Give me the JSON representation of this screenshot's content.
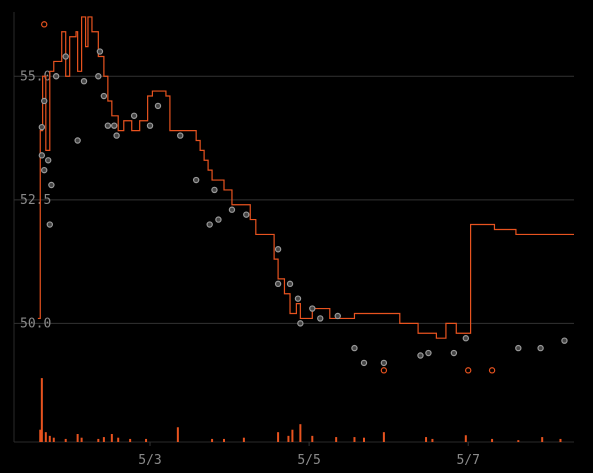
{
  "chart_data": {
    "type": "line",
    "xlim": [
      1.29,
      8.33
    ],
    "xticks": [
      {
        "value": 3,
        "label": "5/3"
      },
      {
        "value": 5,
        "label": "5/5"
      },
      {
        "value": 7,
        "label": "5/7"
      }
    ],
    "ylim": [
      47.6,
      56.3
    ],
    "yticks": [
      {
        "value": 55,
        "label": "55.0"
      },
      52.5,
      {
        "value": 50,
        "label": "50.0"
      }
    ],
    "y2lim": [
      0,
      700
    ],
    "grid": true,
    "series": [
      {
        "type": "step",
        "color": "#e8531f",
        "x": [
          1.59,
          1.62,
          1.65,
          1.69,
          1.74,
          1.79,
          1.89,
          1.94,
          1.99,
          2.07,
          2.09,
          2.14,
          2.19,
          2.22,
          2.27,
          2.35,
          2.42,
          2.47,
          2.52,
          2.6,
          2.67,
          2.77,
          2.87,
          2.97,
          3.03,
          3.2,
          3.25,
          3.38,
          3.58,
          3.63,
          3.68,
          3.73,
          3.78,
          3.93,
          4.03,
          4.26,
          4.33,
          4.56,
          4.61,
          4.69,
          4.76,
          4.84,
          4.89,
          5.04,
          5.26,
          5.57,
          6.14,
          6.37,
          6.6,
          6.72,
          6.85,
          7.03,
          7.33,
          7.6,
          8.33
        ],
        "values": [
          50.1,
          53.9,
          55.0,
          53.5,
          55.1,
          55.3,
          55.9,
          55.0,
          55.8,
          55.9,
          55.1,
          56.2,
          55.6,
          56.2,
          55.9,
          55.4,
          55.0,
          54.5,
          54.2,
          53.9,
          54.1,
          53.9,
          54.1,
          54.6,
          54.7,
          54.6,
          53.9,
          53.9,
          53.7,
          53.5,
          53.3,
          53.1,
          52.9,
          52.7,
          52.4,
          52.1,
          51.8,
          51.3,
          50.9,
          50.6,
          50.2,
          50.4,
          50.1,
          50.3,
          50.1,
          50.2,
          50.0,
          49.8,
          49.7,
          50.0,
          49.8,
          52.0,
          51.9,
          51.8,
          51.8
        ]
      },
      {
        "type": "scatter",
        "color": "#9a9a9a",
        "x": [
          1.64,
          1.67,
          1.64,
          1.67,
          1.72,
          1.74,
          1.76,
          1.82,
          1.94,
          2.09,
          2.17,
          2.35,
          2.37,
          2.42,
          2.47,
          2.55,
          2.58,
          2.8,
          3.0,
          3.1,
          3.38,
          3.58,
          3.81,
          3.75,
          3.86,
          4.03,
          4.21,
          4.61,
          4.61,
          4.76,
          4.86,
          4.89,
          5.04,
          5.14,
          5.36,
          5.57,
          5.69,
          5.94,
          6.4,
          6.5,
          6.82,
          6.97,
          7.63,
          7.91,
          8.21
        ],
        "values": [
          53.97,
          54.5,
          53.4,
          53.1,
          53.3,
          52.0,
          52.8,
          55.0,
          55.4,
          53.7,
          54.9,
          55.0,
          55.5,
          54.6,
          54.0,
          54.0,
          53.8,
          54.2,
          54.0,
          54.4,
          53.8,
          52.9,
          52.7,
          52.0,
          52.1,
          52.3,
          52.2,
          51.5,
          50.8,
          50.8,
          50.5,
          50.0,
          50.3,
          50.1,
          50.15,
          49.5,
          49.2,
          49.2,
          49.35,
          49.4,
          49.4,
          49.7,
          49.5,
          49.5,
          49.65
        ]
      },
      {
        "type": "scatter",
        "color": "#e8531f",
        "x": [
          1.67,
          5.94,
          7.0,
          7.3
        ],
        "values": [
          56.05,
          49.05,
          49.05,
          49.05
        ]
      },
      {
        "type": "bar",
        "axis": "y2",
        "color": "#e8531f",
        "x": [
          1.62,
          1.64,
          1.69,
          1.74,
          1.79,
          1.94,
          2.09,
          2.14,
          2.35,
          2.42,
          2.52,
          2.6,
          2.75,
          2.95,
          3.35,
          3.78,
          3.93,
          4.18,
          4.61,
          4.74,
          4.79,
          4.89,
          5.04,
          5.34,
          5.57,
          5.69,
          5.94,
          6.47,
          6.55,
          6.97,
          7.3,
          7.63,
          7.93,
          8.16
        ],
        "values": [
          20,
          104,
          16,
          10,
          7,
          5,
          13,
          7,
          5,
          8,
          13,
          7,
          5,
          5,
          24,
          5,
          5,
          7,
          16,
          10,
          20,
          29,
          10,
          8,
          8,
          7,
          16,
          8,
          5,
          11,
          5,
          3,
          8,
          5
        ]
      }
    ]
  }
}
